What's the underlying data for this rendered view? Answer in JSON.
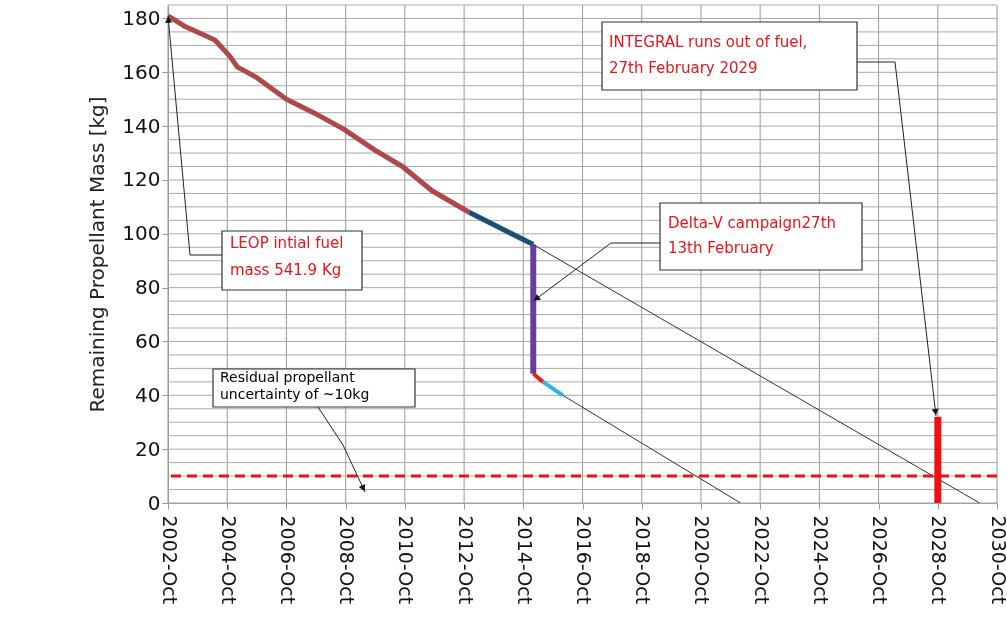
{
  "chart_data": {
    "type": "line",
    "ylabel": "Remaining Propellant Mass [kg]",
    "xlim": [
      "2002-10",
      "2030-10"
    ],
    "xticks": [
      {
        "value": "2002-10",
        "label": "2002-Oct"
      },
      {
        "value": "2004-10",
        "label": "2004-Oct"
      },
      {
        "value": "2006-10",
        "label": "2006-Oct"
      },
      {
        "value": "2008-10",
        "label": "2008-Oct"
      },
      {
        "value": "2010-10",
        "label": "2010-Oct"
      },
      {
        "value": "2012-10",
        "label": "2012-Oct"
      },
      {
        "value": "2014-10",
        "label": "2014-Oct"
      },
      {
        "value": "2016-10",
        "label": "2016-Oct"
      },
      {
        "value": "2018-10",
        "label": "2018-Oct"
      },
      {
        "value": "2020-10",
        "label": "2020-Oct"
      },
      {
        "value": "2022-10",
        "label": "2022-Oct"
      },
      {
        "value": "2024-10",
        "label": "2024-Oct"
      },
      {
        "value": "2026-10",
        "label": "2026-Oct"
      },
      {
        "value": "2028-10",
        "label": "2028-Oct"
      },
      {
        "value": "2030-10",
        "label": "2030-Oct"
      }
    ],
    "ylim": [
      0,
      185
    ],
    "yticks": [
      0,
      {
        "value": 5,
        "label": null
      },
      {
        "value": 10,
        "label": null
      },
      {
        "value": 15,
        "label": null
      },
      20,
      {
        "value": 25,
        "label": null
      },
      {
        "value": 30,
        "label": null
      },
      {
        "value": 35,
        "label": null
      },
      40,
      {
        "value": 45,
        "label": null
      },
      {
        "value": 50,
        "label": null
      },
      {
        "value": 55,
        "label": null
      },
      60,
      {
        "value": 65,
        "label": null
      },
      {
        "value": 70,
        "label": null
      },
      {
        "value": 75,
        "label": null
      },
      80,
      {
        "value": 85,
        "label": null
      },
      {
        "value": 90,
        "label": null
      },
      {
        "value": 95,
        "label": null
      },
      100,
      {
        "value": 105,
        "label": null
      },
      {
        "value": 110,
        "label": null
      },
      {
        "value": 115,
        "label": null
      },
      120,
      {
        "value": 125,
        "label": null
      },
      {
        "value": 130,
        "label": null
      },
      {
        "value": 135,
        "label": null
      },
      140,
      {
        "value": 145,
        "label": null
      },
      {
        "value": 150,
        "label": null
      },
      {
        "value": 155,
        "label": null
      },
      160,
      {
        "value": 165,
        "label": null
      },
      {
        "value": 170,
        "label": null
      },
      {
        "value": 175,
        "label": null
      },
      180,
      {
        "value": 185,
        "label": null
      }
    ],
    "grid": true,
    "series": [
      {
        "color": "#b0474a",
        "x": [
          "2002-10",
          "2003-05",
          "2004-05",
          "2004-11",
          "2005-02",
          "2005-10",
          "2006-10",
          "2007-09",
          "2008-09",
          "2009-10",
          "2010-09",
          "2011-09",
          "2012-12"
        ],
        "values": [
          181,
          177,
          172,
          166,
          162,
          158,
          150,
          145,
          139,
          131,
          125,
          116,
          108
        ]
      },
      {
        "color": "#1d4f73",
        "x": [
          "2012-12",
          "2015-02"
        ],
        "values": [
          108,
          96
        ]
      },
      {
        "color": "#6a3d9a",
        "x": [
          "2015-02",
          "2015-02"
        ],
        "values": [
          96,
          48
        ]
      },
      {
        "color": "#e8211d",
        "x": [
          "2015-02",
          "2015-06"
        ],
        "values": [
          48,
          45
        ]
      },
      {
        "color": "#2fb5e0",
        "x": [
          "2015-06",
          "2016-02"
        ],
        "values": [
          45,
          40
        ]
      },
      {
        "color": "#333333",
        "x": [
          "2015-02",
          "2030-03"
        ],
        "values": [
          96,
          0
        ]
      },
      {
        "color": "#333333",
        "x": [
          "2016-02",
          "2022-02"
        ],
        "values": [
          40,
          0
        ]
      },
      {
        "color": "#ee1111",
        "x": [
          "2028-10",
          "2028-10"
        ],
        "values": [
          32,
          0
        ]
      }
    ],
    "ref_lines": [
      {
        "axis": "y",
        "value": 10,
        "color": "#ee1111",
        "line_style": "dashed"
      }
    ],
    "annotations": [
      {
        "text": "LEOP intial fuel\nmass 541.9 Kg",
        "x": "2002-10",
        "y": 181
      },
      "Residual propellant\nuncertainty of ~10kg",
      {
        "text": "Delta-V campaign27th\n13th February",
        "x": "2015-02",
        "y": 75
      },
      "INTEGRAL runs out of fuel,\n27th February 2029"
    ]
  }
}
